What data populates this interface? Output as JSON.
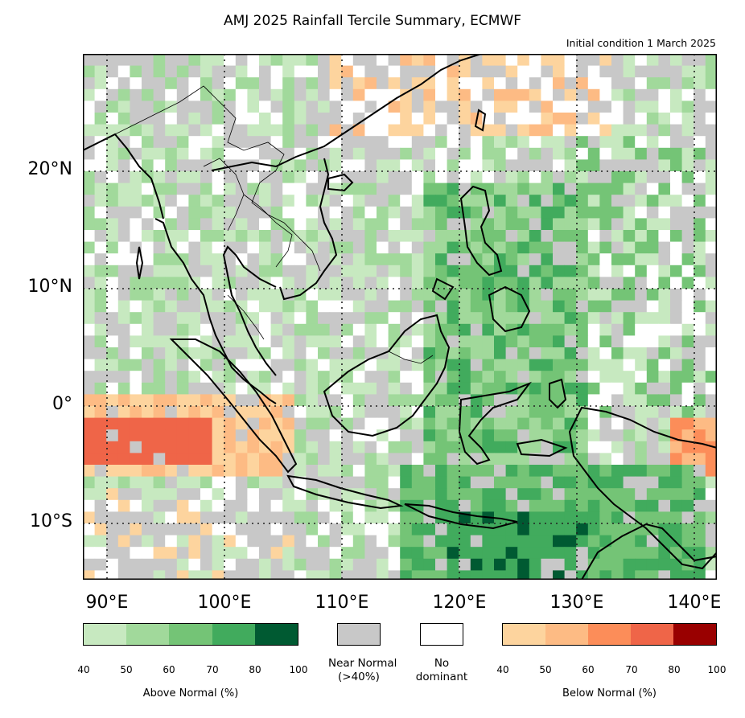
{
  "title": "AMJ 2025 Rainfall Tercile Summary, ECMWF",
  "subtitle": "Initial condition 1 March 2025",
  "lat_labels": [
    "20°N",
    "10°N",
    "0°",
    "10°S"
  ],
  "lon_labels": [
    "90°E",
    "100°E",
    "110°E",
    "120°E",
    "130°E",
    "140°E"
  ],
  "above_normal": {
    "label": "Above Normal (%)",
    "ticks": [
      "40",
      "50",
      "60",
      "70",
      "80",
      "100"
    ],
    "colors": [
      "#c7e9c0",
      "#a1d99b",
      "#74c476",
      "#41ab5d",
      "#005a32"
    ]
  },
  "near_normal": {
    "label_line1": "Near Normal",
    "label_line2": "(>40%)",
    "color": "#c8c8c8"
  },
  "no_dominant": {
    "label_line1": "No",
    "label_line2": "dominant",
    "color": "#ffffff"
  },
  "below_normal": {
    "label": "Below Normal (%)",
    "ticks": [
      "40",
      "50",
      "60",
      "70",
      "80",
      "100"
    ],
    "colors": [
      "#fdd49e",
      "#fdbb84",
      "#fc8d59",
      "#ef6548",
      "#990000"
    ]
  }
}
